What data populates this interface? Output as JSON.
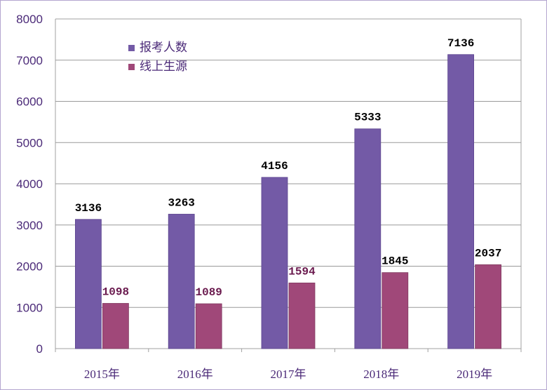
{
  "chart_data": {
    "type": "bar",
    "categories": [
      "2015年",
      "2016年",
      "2017年",
      "2018年",
      "2019年"
    ],
    "series": [
      {
        "name": "报考人数",
        "values": [
          3136,
          3263,
          4156,
          5333,
          7136
        ],
        "color": "#735aa6",
        "label_color": "#000000"
      },
      {
        "name": "线上生源",
        "values": [
          1098,
          1089,
          1594,
          1845,
          2037
        ],
        "color": "#a04879",
        "label_color_primary": "#6a1a4e",
        "label_color_secondary": "#000000"
      }
    ],
    "ylim": [
      0,
      8000
    ],
    "yticks": [
      0,
      1000,
      2000,
      3000,
      4000,
      5000,
      6000,
      7000,
      8000
    ],
    "grid": true,
    "legend": "top-left",
    "axis_color": "#a0a0a0",
    "grid_color": "#9a9a9a",
    "tick_color": "#4b2a78"
  }
}
